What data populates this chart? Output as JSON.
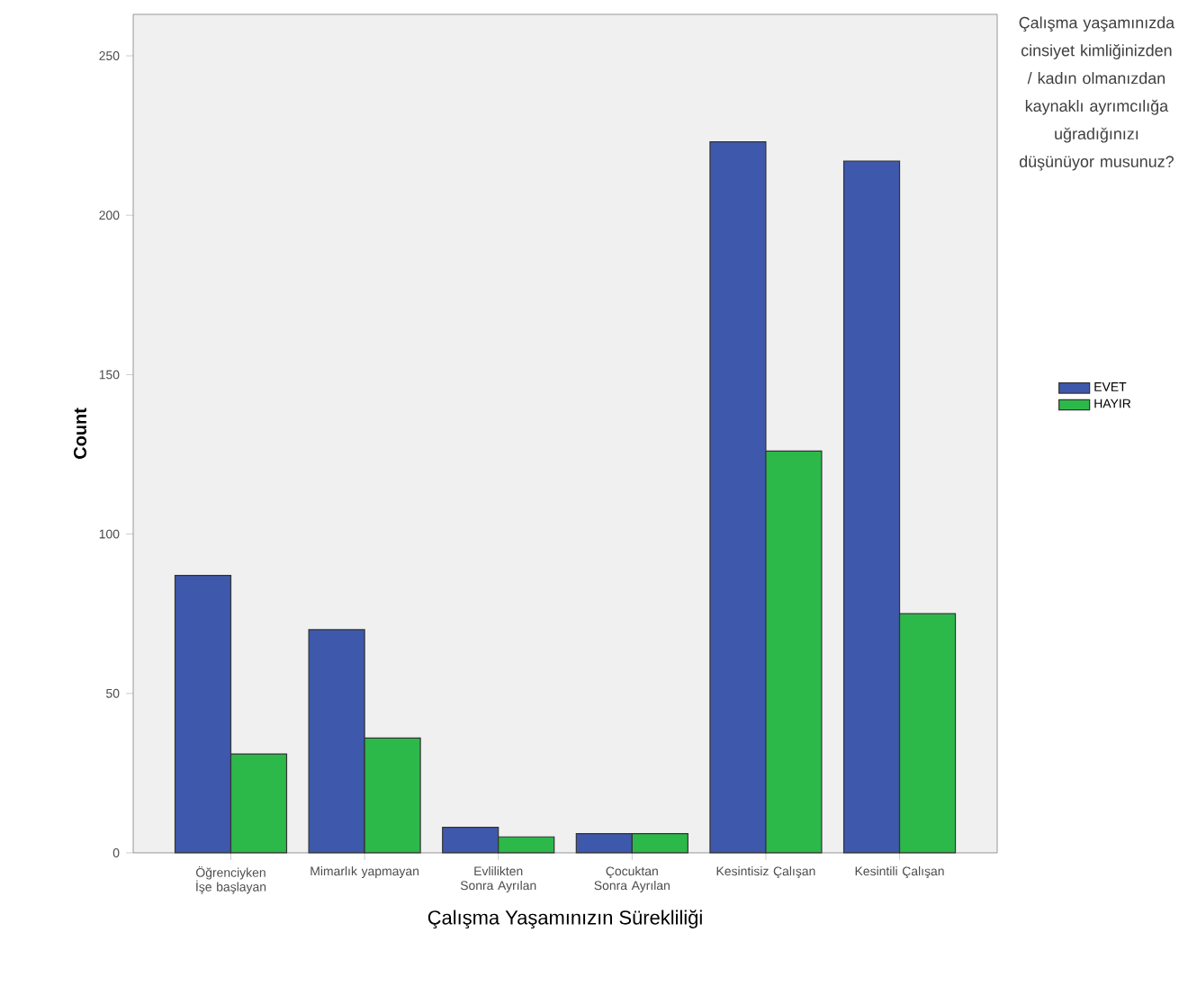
{
  "chart_data": {
    "type": "bar",
    "xlabel": "Çalışma Yaşamınızın Sürekliliği",
    "ylabel": "Count",
    "legend_title": "Çalışma yaşamınızda cinsiyet kimliğinizden / kadın olmanızdan kaynaklı ayrımcılığa uğradığınızı düşünüyor musunuz?",
    "categories": [
      "Öğrenciyken İşe başlayan",
      "Mimarlık yapmayan",
      "Evlilikten Sonra Ayrılan",
      "Çocuktan Sonra Ayrılan",
      "Kesintisiz Çalışan",
      "Kesintili Çalışan"
    ],
    "series": [
      {
        "name": "EVET",
        "color": "#3e58ac",
        "values": [
          87,
          70,
          8,
          6,
          223,
          217
        ]
      },
      {
        "name": "HAYIR",
        "color": "#2db84a",
        "values": [
          31,
          36,
          5,
          6,
          126,
          75
        ]
      }
    ],
    "ylim": [
      0,
      263
    ],
    "yticks": [
      0,
      50,
      100,
      150,
      200,
      250
    ],
    "grid": false,
    "legend": "right"
  }
}
